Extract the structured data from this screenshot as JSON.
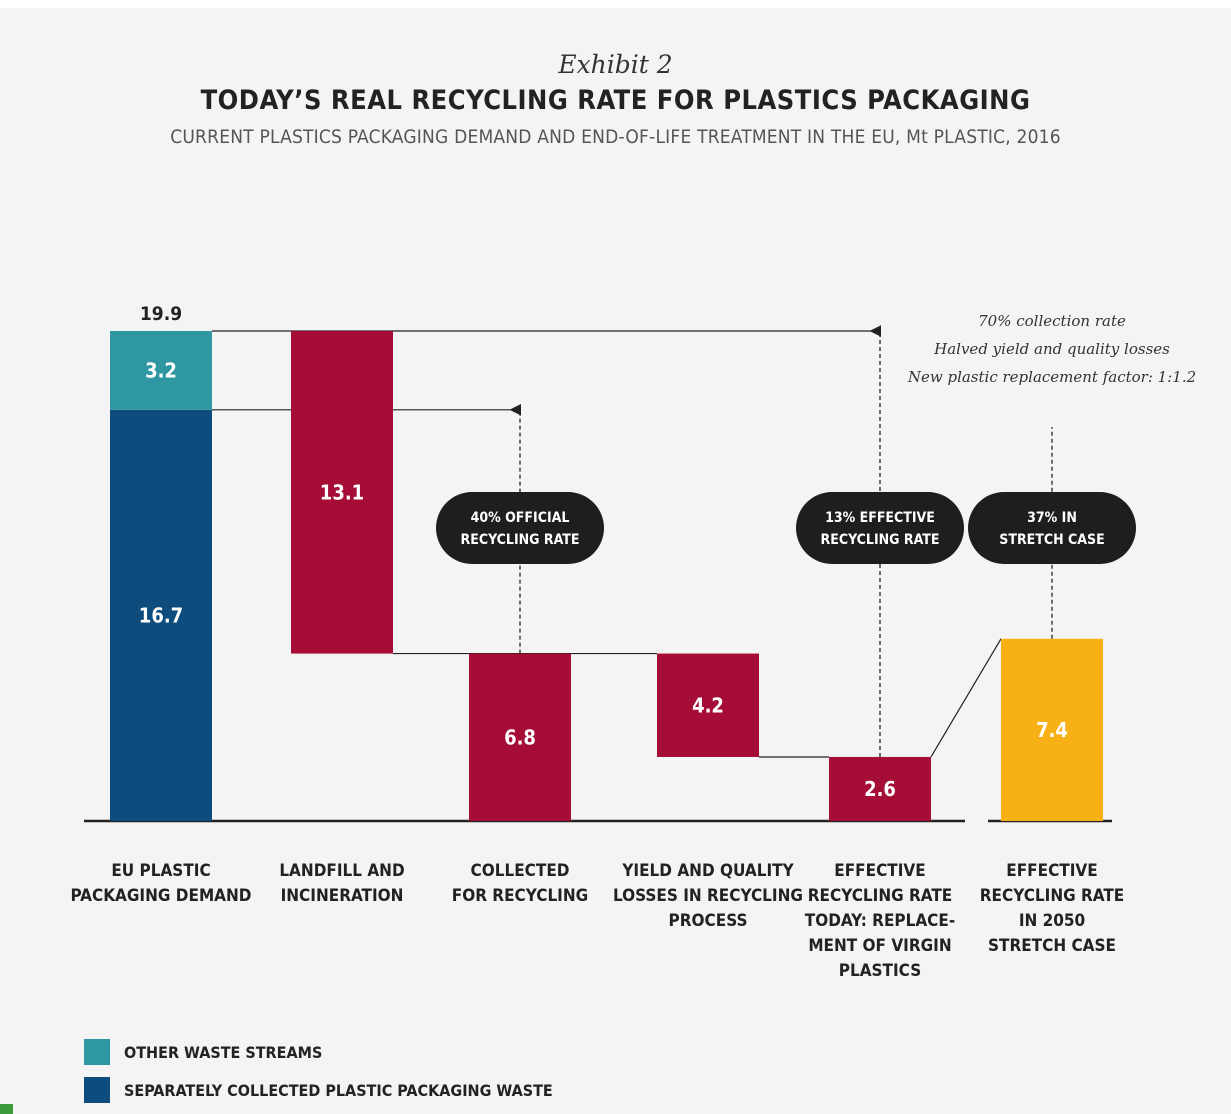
{
  "header": {
    "exhibit": "Exhibit 2",
    "title": "TODAY’S REAL RECYCLING RATE FOR PLASTICS PACKAGING",
    "subtitle": "CURRENT PLASTICS PACKAGING DEMAND AND END-OF-LIFE TREATMENT IN THE EU, Mt PLASTIC, 2016"
  },
  "colors": {
    "other_waste": "#2f97a2",
    "separately_collected": "#0d4c7c",
    "flow_bar": "#a50d36",
    "stretch_case": "#f7b016",
    "callout": "#1e1e1e"
  },
  "chart_data": {
    "type": "waterfall",
    "unit": "Mt plastic",
    "ylim": [
      0,
      19.9
    ],
    "grid": false,
    "categories": [
      "EU PLASTIC PACKAGING DEMAND",
      "LANDFILL AND INCINERATION",
      "COLLECTED FOR RECYCLING",
      "YIELD AND QUALITY LOSSES IN RECYCLING PROCESS",
      "EFFECTIVE RECYCLING RATE TODAY: REPLACE-MENT OF VIRGIN PLASTICS",
      "EFFECTIVE RECYCLING RATE IN 2050 STRETCH CASE"
    ],
    "category_lines": [
      [
        "EU PLASTIC",
        "PACKAGING DEMAND"
      ],
      [
        "LANDFILL AND",
        "INCINERATION"
      ],
      [
        "COLLECTED",
        "FOR RECYCLING"
      ],
      [
        "YIELD AND QUALITY",
        "LOSSES IN RECYCLING",
        "PROCESS"
      ],
      [
        "EFFECTIVE",
        "RECYCLING RATE",
        "TODAY: REPLACE-",
        "MENT OF VIRGIN",
        "PLASTICS"
      ],
      [
        "EFFECTIVE",
        "RECYCLING RATE",
        "IN 2050",
        "STRETCH CASE"
      ]
    ],
    "total_label": "19.9",
    "bars": [
      {
        "category": 0,
        "series": "SEPARATELY COLLECTED PLASTIC PACKAGING WASTE",
        "base": 0,
        "value": 16.7,
        "label": "16.7",
        "color_key": "separately_collected"
      },
      {
        "category": 0,
        "series": "OTHER WASTE STREAMS",
        "base": 16.7,
        "value": 3.2,
        "label": "3.2",
        "color_key": "other_waste"
      },
      {
        "category": 1,
        "base": 6.8,
        "value": 13.1,
        "label": "13.1",
        "color_key": "flow_bar"
      },
      {
        "category": 2,
        "base": 0,
        "value": 6.8,
        "label": "6.8",
        "color_key": "flow_bar"
      },
      {
        "category": 3,
        "base": 2.6,
        "value": 4.2,
        "label": "4.2",
        "color_key": "flow_bar"
      },
      {
        "category": 4,
        "base": 0,
        "value": 2.6,
        "label": "2.6",
        "color_key": "flow_bar"
      },
      {
        "category": 5,
        "base": 0,
        "value": 7.4,
        "label": "7.4",
        "color_key": "stretch_case"
      }
    ],
    "callouts": [
      {
        "category": 2,
        "lines": [
          "40% OFFICIAL",
          "RECYCLING RATE"
        ],
        "arrow_from": 6.8,
        "arrow_to": 16.7
      },
      {
        "category": 4,
        "lines": [
          "13% EFFECTIVE",
          "RECYCLING RATE"
        ],
        "arrow_from": 2.6,
        "arrow_to": 19.9
      },
      {
        "category": 5,
        "lines": [
          "37% IN",
          "STRETCH CASE"
        ],
        "arrow_from": 7.4,
        "arrow_to": 16.0
      }
    ],
    "stretch_assumptions": [
      "70% collection rate",
      "Halved yield and quality losses",
      "New plastic replacement factor: 1:1.2"
    ],
    "legend": {
      "position": "bottom-left",
      "items": [
        {
          "label": "OTHER WASTE STREAMS",
          "color_key": "other_waste"
        },
        {
          "label": "SEPARATELY COLLECTED PLASTIC PACKAGING WASTE",
          "color_key": "separately_collected"
        }
      ]
    }
  }
}
